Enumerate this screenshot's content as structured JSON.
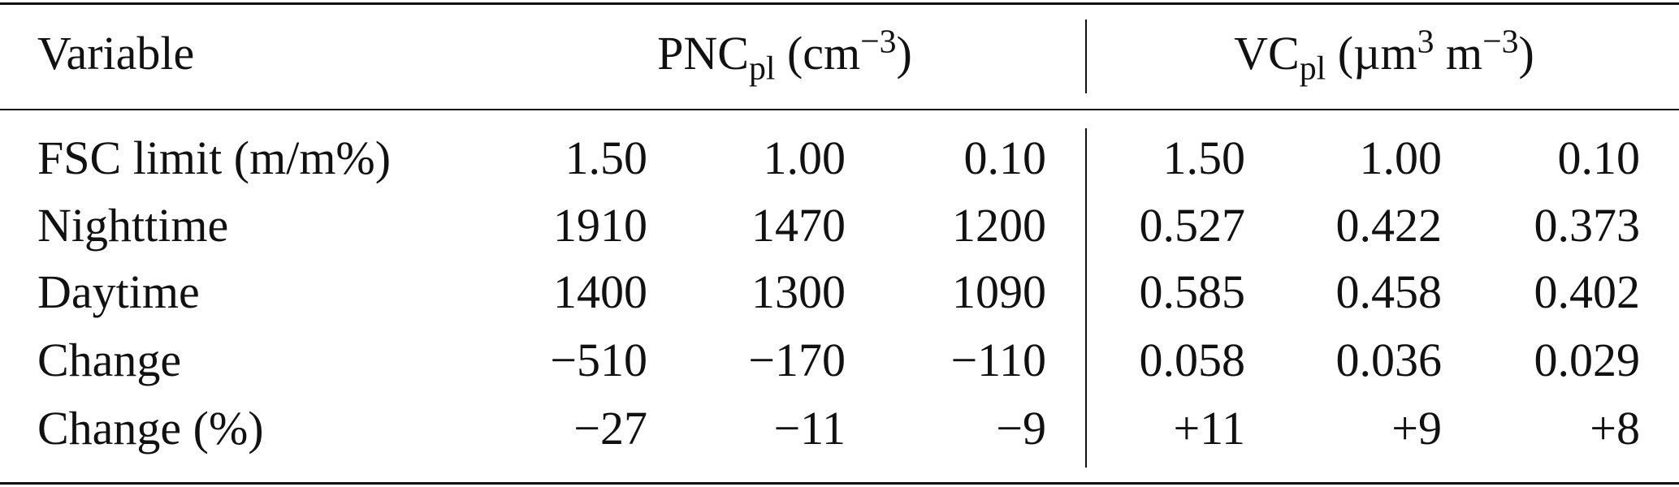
{
  "table": {
    "header": [
      [
        {
          "text": "Variable"
        }
      ],
      [
        {
          "text": "PNC"
        },
        {
          "sub": "pl"
        },
        {
          "text": " (cm"
        },
        {
          "sup": "−3"
        },
        {
          "text": ")"
        }
      ],
      [
        {
          "text": "VC"
        },
        {
          "sub": "pl"
        },
        {
          "text": " (µm"
        },
        {
          "sup": "3"
        },
        {
          "text": " m"
        },
        {
          "sup": "−3"
        },
        {
          "text": ")"
        }
      ]
    ],
    "rows": [
      [
        "FSC limit (m/m%)",
        "1.50",
        "1.00",
        "0.10",
        "1.50",
        "1.00",
        "0.10"
      ],
      [
        "Nighttime",
        "1910",
        "1470",
        "1200",
        "0.527",
        "0.422",
        "0.373"
      ],
      [
        "Daytime",
        "1400",
        "1300",
        "1090",
        "0.585",
        "0.458",
        "0.402"
      ],
      [
        "Change",
        "−510",
        "−170",
        "−110",
        "0.058",
        "0.036",
        "0.029"
      ],
      [
        "Change (%)",
        "−27",
        "−11",
        "−9",
        "+11",
        "+9",
        "+8"
      ]
    ]
  }
}
